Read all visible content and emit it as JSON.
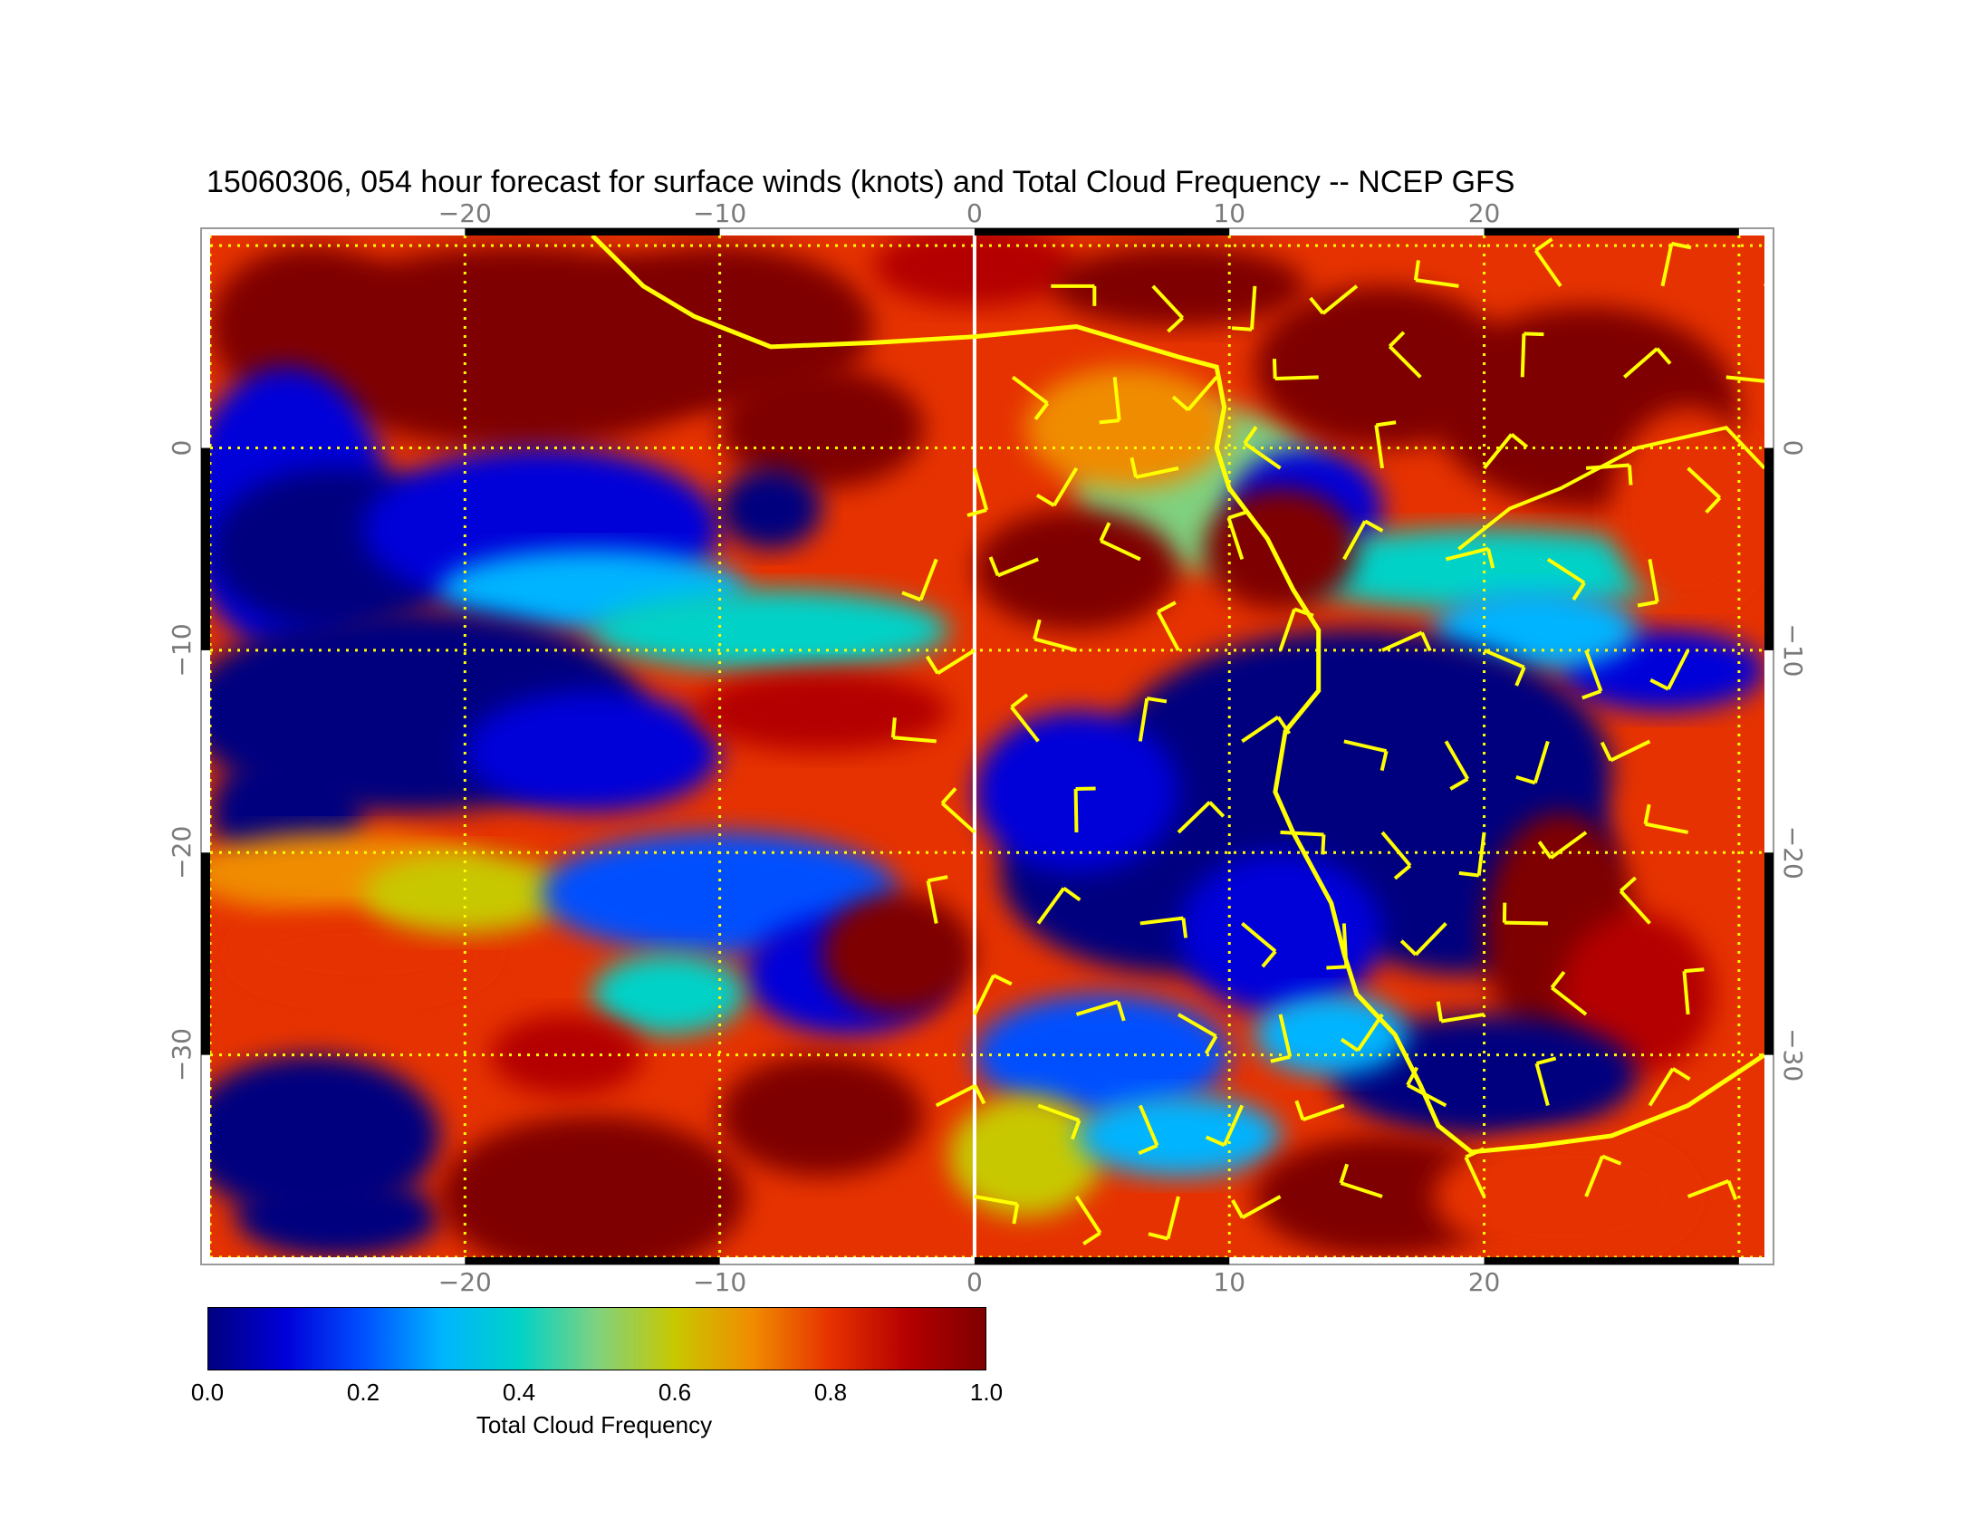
{
  "figure": {
    "title": "15060306, 054 hour forecast for surface winds (knots) and Total Cloud Frequency -- NCEP GFS"
  },
  "map": {
    "lon_range": [
      -30,
      31
    ],
    "lat_range": [
      -40,
      10.5
    ],
    "x_tick_labels": [
      "−20",
      "−10",
      "0",
      "10",
      "20"
    ],
    "x_tick_values": [
      -20,
      -10,
      0,
      10,
      20
    ],
    "y_tick_labels": [
      "0",
      "−10",
      "−20",
      "−30"
    ],
    "y_tick_values": [
      0,
      -10,
      -20,
      -30
    ],
    "grid": "dotted yellow every 10 degrees",
    "overlay_color": "#ffff00",
    "meridian_line_color": "#ffffff",
    "legend_placement": "bottom-left colorbar"
  },
  "colorbar": {
    "label": "Total Cloud Frequency",
    "tick_labels": [
      "0.0",
      "0.2",
      "0.4",
      "0.6",
      "0.8",
      "1.0"
    ],
    "tick_values": [
      0.0,
      0.2,
      0.4,
      0.6,
      0.8,
      1.0
    ],
    "range": [
      0.0,
      1.0
    ],
    "colormap": [
      "#00007f",
      "#0000d9",
      "#0050ff",
      "#00b4ff",
      "#00d2c8",
      "#7fd27f",
      "#c8c800",
      "#f08c00",
      "#e63200",
      "#b40000",
      "#7f0000"
    ]
  }
}
